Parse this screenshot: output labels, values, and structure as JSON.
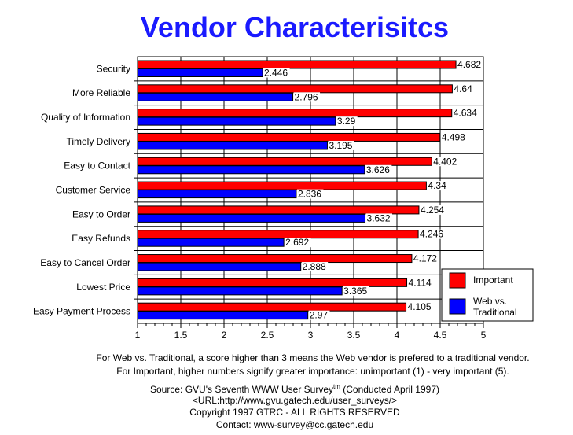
{
  "chart_data": {
    "type": "bar",
    "orientation": "horizontal",
    "title": "Vendor Characterisitcs",
    "categories": [
      "Security",
      "More Reliable",
      "Quality of Information",
      "Timely Delivery",
      "Easy to Contact",
      "Customer Service",
      "Easy to Order",
      "Easy Refunds",
      "Easy to Cancel Order",
      "Lowest Price",
      "Easy Payment Process"
    ],
    "series": [
      {
        "name": "Important",
        "color": "#ff0000",
        "values": [
          4.682,
          4.64,
          4.634,
          4.498,
          4.402,
          4.34,
          4.254,
          4.246,
          4.172,
          4.114,
          4.105
        ],
        "labels": [
          "4.682",
          "4.64",
          "4.634",
          "4.498",
          "4.402",
          "4.34",
          "4.254",
          "4.246",
          "4.172",
          "4.114",
          "4.105"
        ]
      },
      {
        "name": "Web vs. Traditional",
        "color": "#0000ff",
        "values": [
          2.446,
          2.796,
          3.29,
          3.195,
          3.626,
          2.836,
          3.632,
          2.692,
          2.888,
          3.365,
          2.97
        ],
        "labels": [
          "2.446",
          "2.796",
          "3.29",
          "3.195",
          "3.626",
          "2.836",
          "3.632",
          "2.692",
          "2.888",
          "3.365",
          "2.97"
        ]
      }
    ],
    "xlim": [
      1,
      5
    ],
    "xticks": [
      "1",
      "1.5",
      "2",
      "2.5",
      "3",
      "3.5",
      "4",
      "4.5",
      "5"
    ],
    "grid": true,
    "legend_position": "bottom-right",
    "legend": [
      "Important",
      "Web vs.",
      "Traditional"
    ]
  },
  "notes": [
    "For Web vs. Traditional, a score higher than 3 means the Web vendor is prefered to a traditional vendor.",
    "For Important, higher numbers signify greater importance: unimportant (1) - very important (5)."
  ],
  "source": {
    "line1": "Source: GVU's Seventh WWW User Survey",
    "tm": "tm",
    "line1b": " (Conducted April 1997)",
    "url": "<URL:http://www.gvu.gatech.edu/user_surveys/>",
    "copyright": "Copyright 1997 GTRC - ALL RIGHTS RESERVED",
    "contact": "Contact: www-survey@cc.gatech.edu"
  }
}
